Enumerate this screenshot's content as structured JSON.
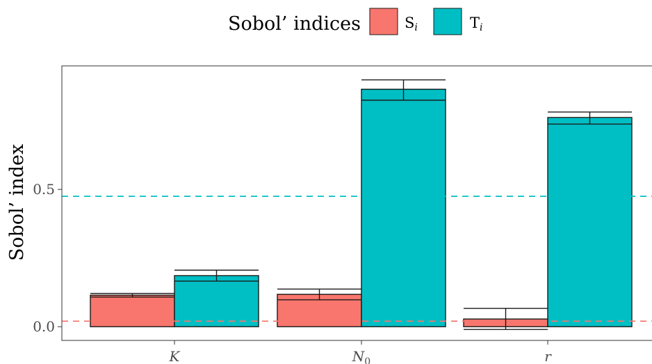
{
  "chart_data": {
    "type": "bar",
    "title": "",
    "xlabel": "",
    "ylabel": "Sobol’ index",
    "ylim": [
      -0.05,
      0.95
    ],
    "yticks": [
      "0.0",
      "0.5"
    ],
    "categories": [
      "K",
      "N0",
      "r"
    ],
    "category_labels": [
      {
        "main": "K",
        "sub": ""
      },
      {
        "main": "N",
        "sub": "0"
      },
      {
        "main": "r",
        "sub": ""
      }
    ],
    "legend": {
      "title": "Sobol’ indices",
      "placement": "top",
      "items": [
        {
          "main": "S",
          "sub": "i",
          "color": "#F8766D"
        },
        {
          "main": "T",
          "sub": "i",
          "color": "#00BFC4"
        }
      ]
    },
    "series": [
      {
        "name": "Si",
        "color": "#F8766D",
        "values": [
          0.115,
          0.118,
          0.028
        ],
        "ci_low": [
          0.108,
          0.098,
          -0.01
        ],
        "ci_high": [
          0.121,
          0.137,
          0.067
        ]
      },
      {
        "name": "Ti",
        "color": "#00BFC4",
        "values": [
          0.186,
          0.865,
          0.762
        ],
        "ci_low": [
          0.166,
          0.825,
          0.738
        ],
        "ci_high": [
          0.206,
          0.899,
          0.782
        ]
      }
    ],
    "reference_lines": [
      {
        "value": 0.475,
        "color": "#00BFC4",
        "style": "dashed"
      },
      {
        "value": 0.02,
        "color": "#F8766D",
        "style": "dashed"
      }
    ],
    "grid": false
  }
}
